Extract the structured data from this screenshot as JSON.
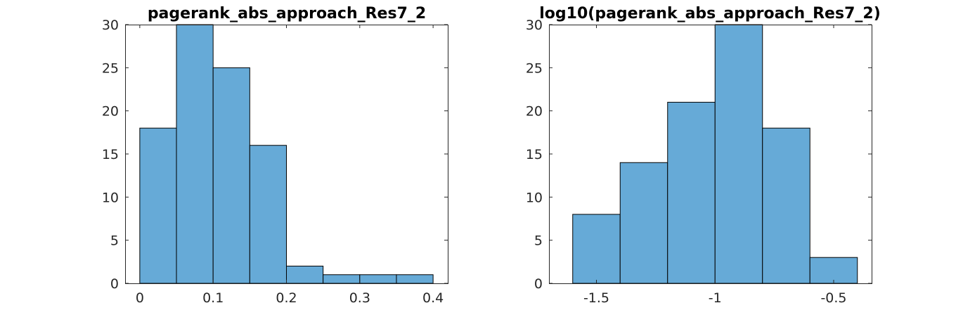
{
  "chart_data": [
    {
      "type": "bar",
      "title": "pagerank_abs_approach_Res7_2",
      "xlabel": "",
      "ylabel": "",
      "bin_edges": [
        0,
        0.05,
        0.1,
        0.15,
        0.2,
        0.25,
        0.3,
        0.35,
        0.4
      ],
      "values": [
        18,
        30,
        25,
        16,
        2,
        1,
        1,
        1
      ],
      "xlim": [
        -0.02,
        0.42
      ],
      "ylim": [
        0,
        30
      ],
      "xticks": [
        0,
        0.1,
        0.2,
        0.3,
        0.4
      ],
      "xtick_labels": [
        "0",
        "0.1",
        "0.2",
        "0.3",
        "0.4"
      ],
      "yticks": [
        0,
        5,
        10,
        15,
        20,
        25,
        30
      ],
      "ytick_labels": [
        "0",
        "5",
        "10",
        "15",
        "20",
        "25",
        "30"
      ],
      "bar_color": "#66aad7",
      "edge_color": "#000000",
      "grid": false
    },
    {
      "type": "bar",
      "title": "log10(pagerank_abs_approach_Res7_2)",
      "xlabel": "",
      "ylabel": "",
      "bin_edges": [
        -1.6,
        -1.4,
        -1.2,
        -1.0,
        -0.8,
        -0.6,
        -0.4
      ],
      "values": [
        8,
        14,
        21,
        30,
        18,
        3
      ],
      "xlim": [
        -1.7,
        -0.34
      ],
      "ylim": [
        0,
        30
      ],
      "xticks": [
        -1.5,
        -1.0,
        -0.5
      ],
      "xtick_labels": [
        "-1.5",
        "-1",
        "-0.5"
      ],
      "yticks": [
        0,
        5,
        10,
        15,
        20,
        25,
        30
      ],
      "ytick_labels": [
        "0",
        "5",
        "10",
        "15",
        "20",
        "25",
        "30"
      ],
      "bar_color": "#66aad7",
      "edge_color": "#000000",
      "grid": false
    }
  ]
}
